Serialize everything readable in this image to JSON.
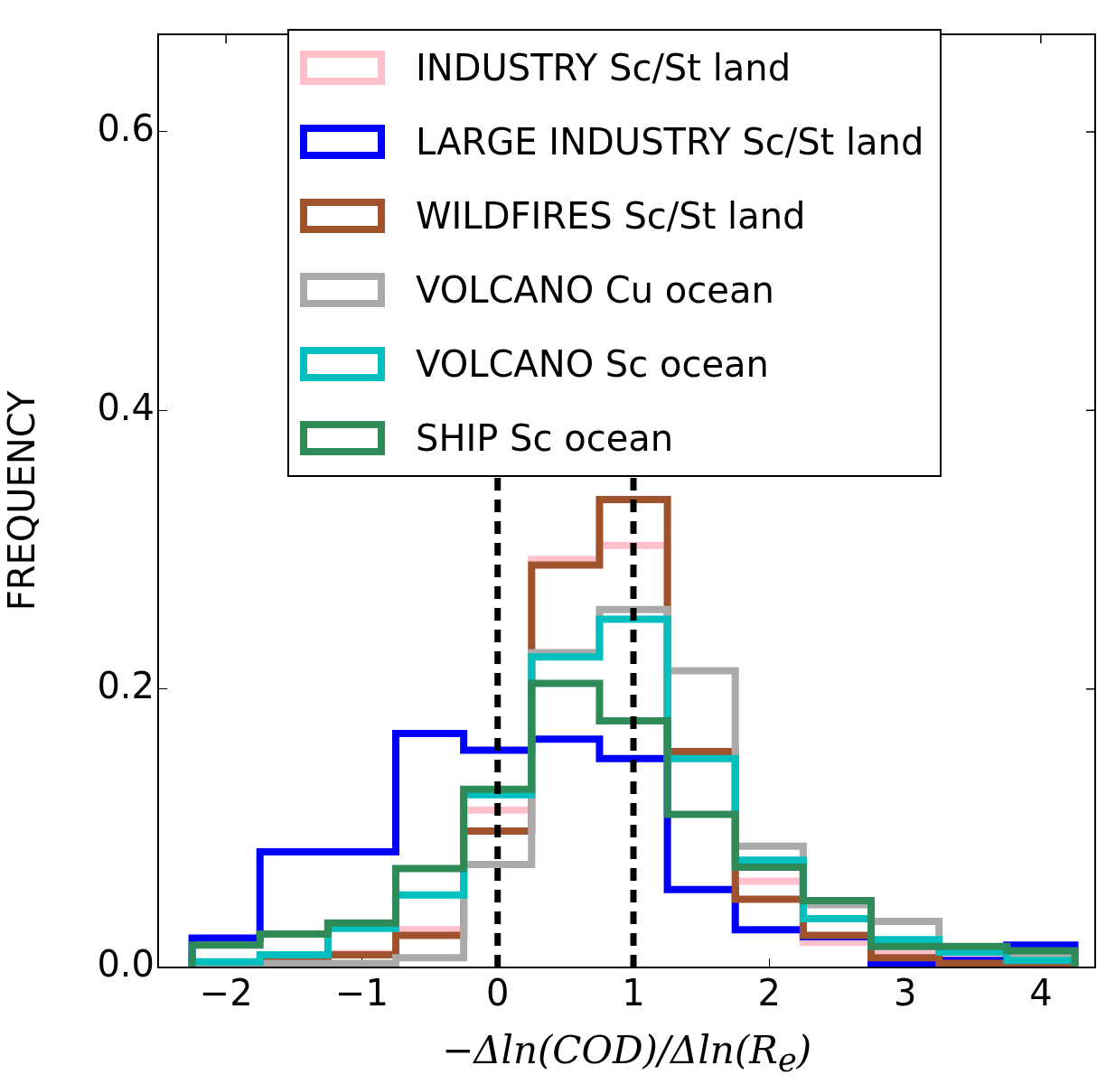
{
  "chart_data": {
    "type": "histogram",
    "xlabel": "−Δln(COD)/Δln(R$_{e}$)",
    "ylabel": "FREQUENCY",
    "bins": [
      -2.25,
      -1.75,
      -1.25,
      -0.75,
      -0.25,
      0.25,
      0.75,
      1.25,
      1.75,
      2.25,
      2.75,
      3.25,
      3.75,
      4.25
    ],
    "series": [
      {
        "name": "INDUSTRY Sc/St land",
        "color": "#ffc0cb",
        "values": [
          0.003,
          0.003,
          0.01,
          0.027,
          0.113,
          0.293,
          0.303,
          0.152,
          0.062,
          0.018,
          0.011,
          0.007,
          0.005
        ]
      },
      {
        "name": "LARGE INDUSTRY Sc/St land",
        "color": "#0000ff",
        "values": [
          0.021,
          0.083,
          0.083,
          0.168,
          0.156,
          0.164,
          0.15,
          0.056,
          0.027,
          0.022,
          0.003,
          0.005,
          0.016
        ]
      },
      {
        "name": "WILDFIRES Sc/St land",
        "color": "#a0522d",
        "values": [
          0.003,
          0.005,
          0.009,
          0.023,
          0.098,
          0.289,
          0.336,
          0.155,
          0.049,
          0.023,
          0.007,
          0.003,
          0.002
        ]
      },
      {
        "name": "VOLCANO Cu ocean",
        "color": "#aaaaaa",
        "values": [
          0.003,
          0.003,
          0.003,
          0.007,
          0.074,
          0.226,
          0.257,
          0.213,
          0.087,
          0.045,
          0.033,
          0.013,
          0.01
        ]
      },
      {
        "name": "VOLCANO Sc ocean",
        "color": "#00bfbf",
        "values": [
          0.004,
          0.009,
          0.028,
          0.052,
          0.124,
          0.223,
          0.25,
          0.15,
          0.077,
          0.035,
          0.02,
          0.011,
          0.005
        ]
      },
      {
        "name": "SHIP Sc ocean",
        "color": "#2e8b57",
        "values": [
          0.016,
          0.024,
          0.032,
          0.071,
          0.128,
          0.204,
          0.177,
          0.11,
          0.072,
          0.048,
          0.015,
          0.015,
          0.012
        ]
      }
    ],
    "xlim": [
      -2.5,
      4.4
    ],
    "ylim": [
      0,
      0.67
    ],
    "xticks": [
      {
        "value": -2,
        "label": "−2"
      },
      {
        "value": -1,
        "label": "−1"
      },
      0,
      1,
      2,
      3,
      4
    ],
    "yticks": [
      {
        "value": 0,
        "label": "0.0"
      },
      0.2,
      0.4,
      0.6
    ],
    "ref_lines": [
      {
        "axis": "x",
        "value": 0,
        "color": "#000000",
        "line_style": "dashed"
      },
      {
        "axis": "x",
        "value": 1,
        "color": "#000000",
        "line_style": "dashed"
      }
    ],
    "legend": "top",
    "grid": false
  }
}
